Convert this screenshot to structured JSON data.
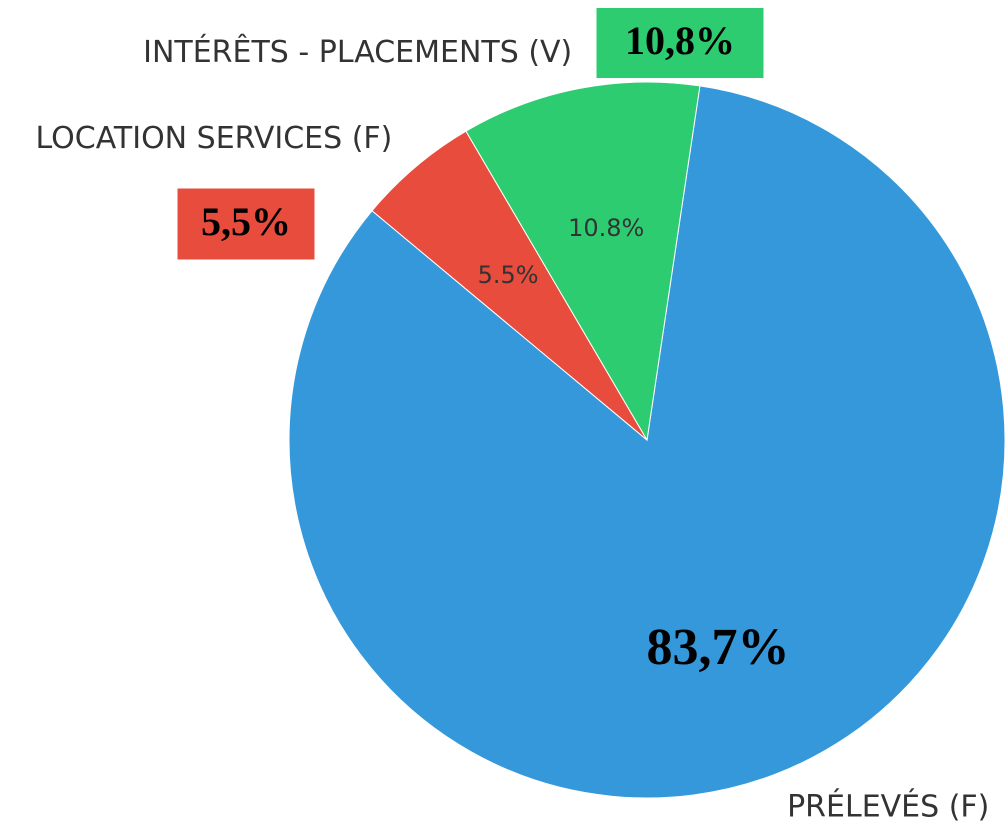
{
  "chart_data": {
    "type": "pie",
    "categories": [
      "PRÉLEVÉS (F)",
      "LOCATION SERVICES (F)",
      "INTÉRÊTS - PLACEMENTS (V)"
    ],
    "values": [
      83.7,
      5.5,
      10.8
    ],
    "value_labels": [
      "83,7%",
      "5,5%",
      "10,8%"
    ],
    "autopct_labels": [
      null,
      "5.5%",
      "10.8%"
    ],
    "colors": [
      "#3498db",
      "#e74c3c",
      "#2ecc71"
    ],
    "startangle": 81.5,
    "counterclock": false
  }
}
